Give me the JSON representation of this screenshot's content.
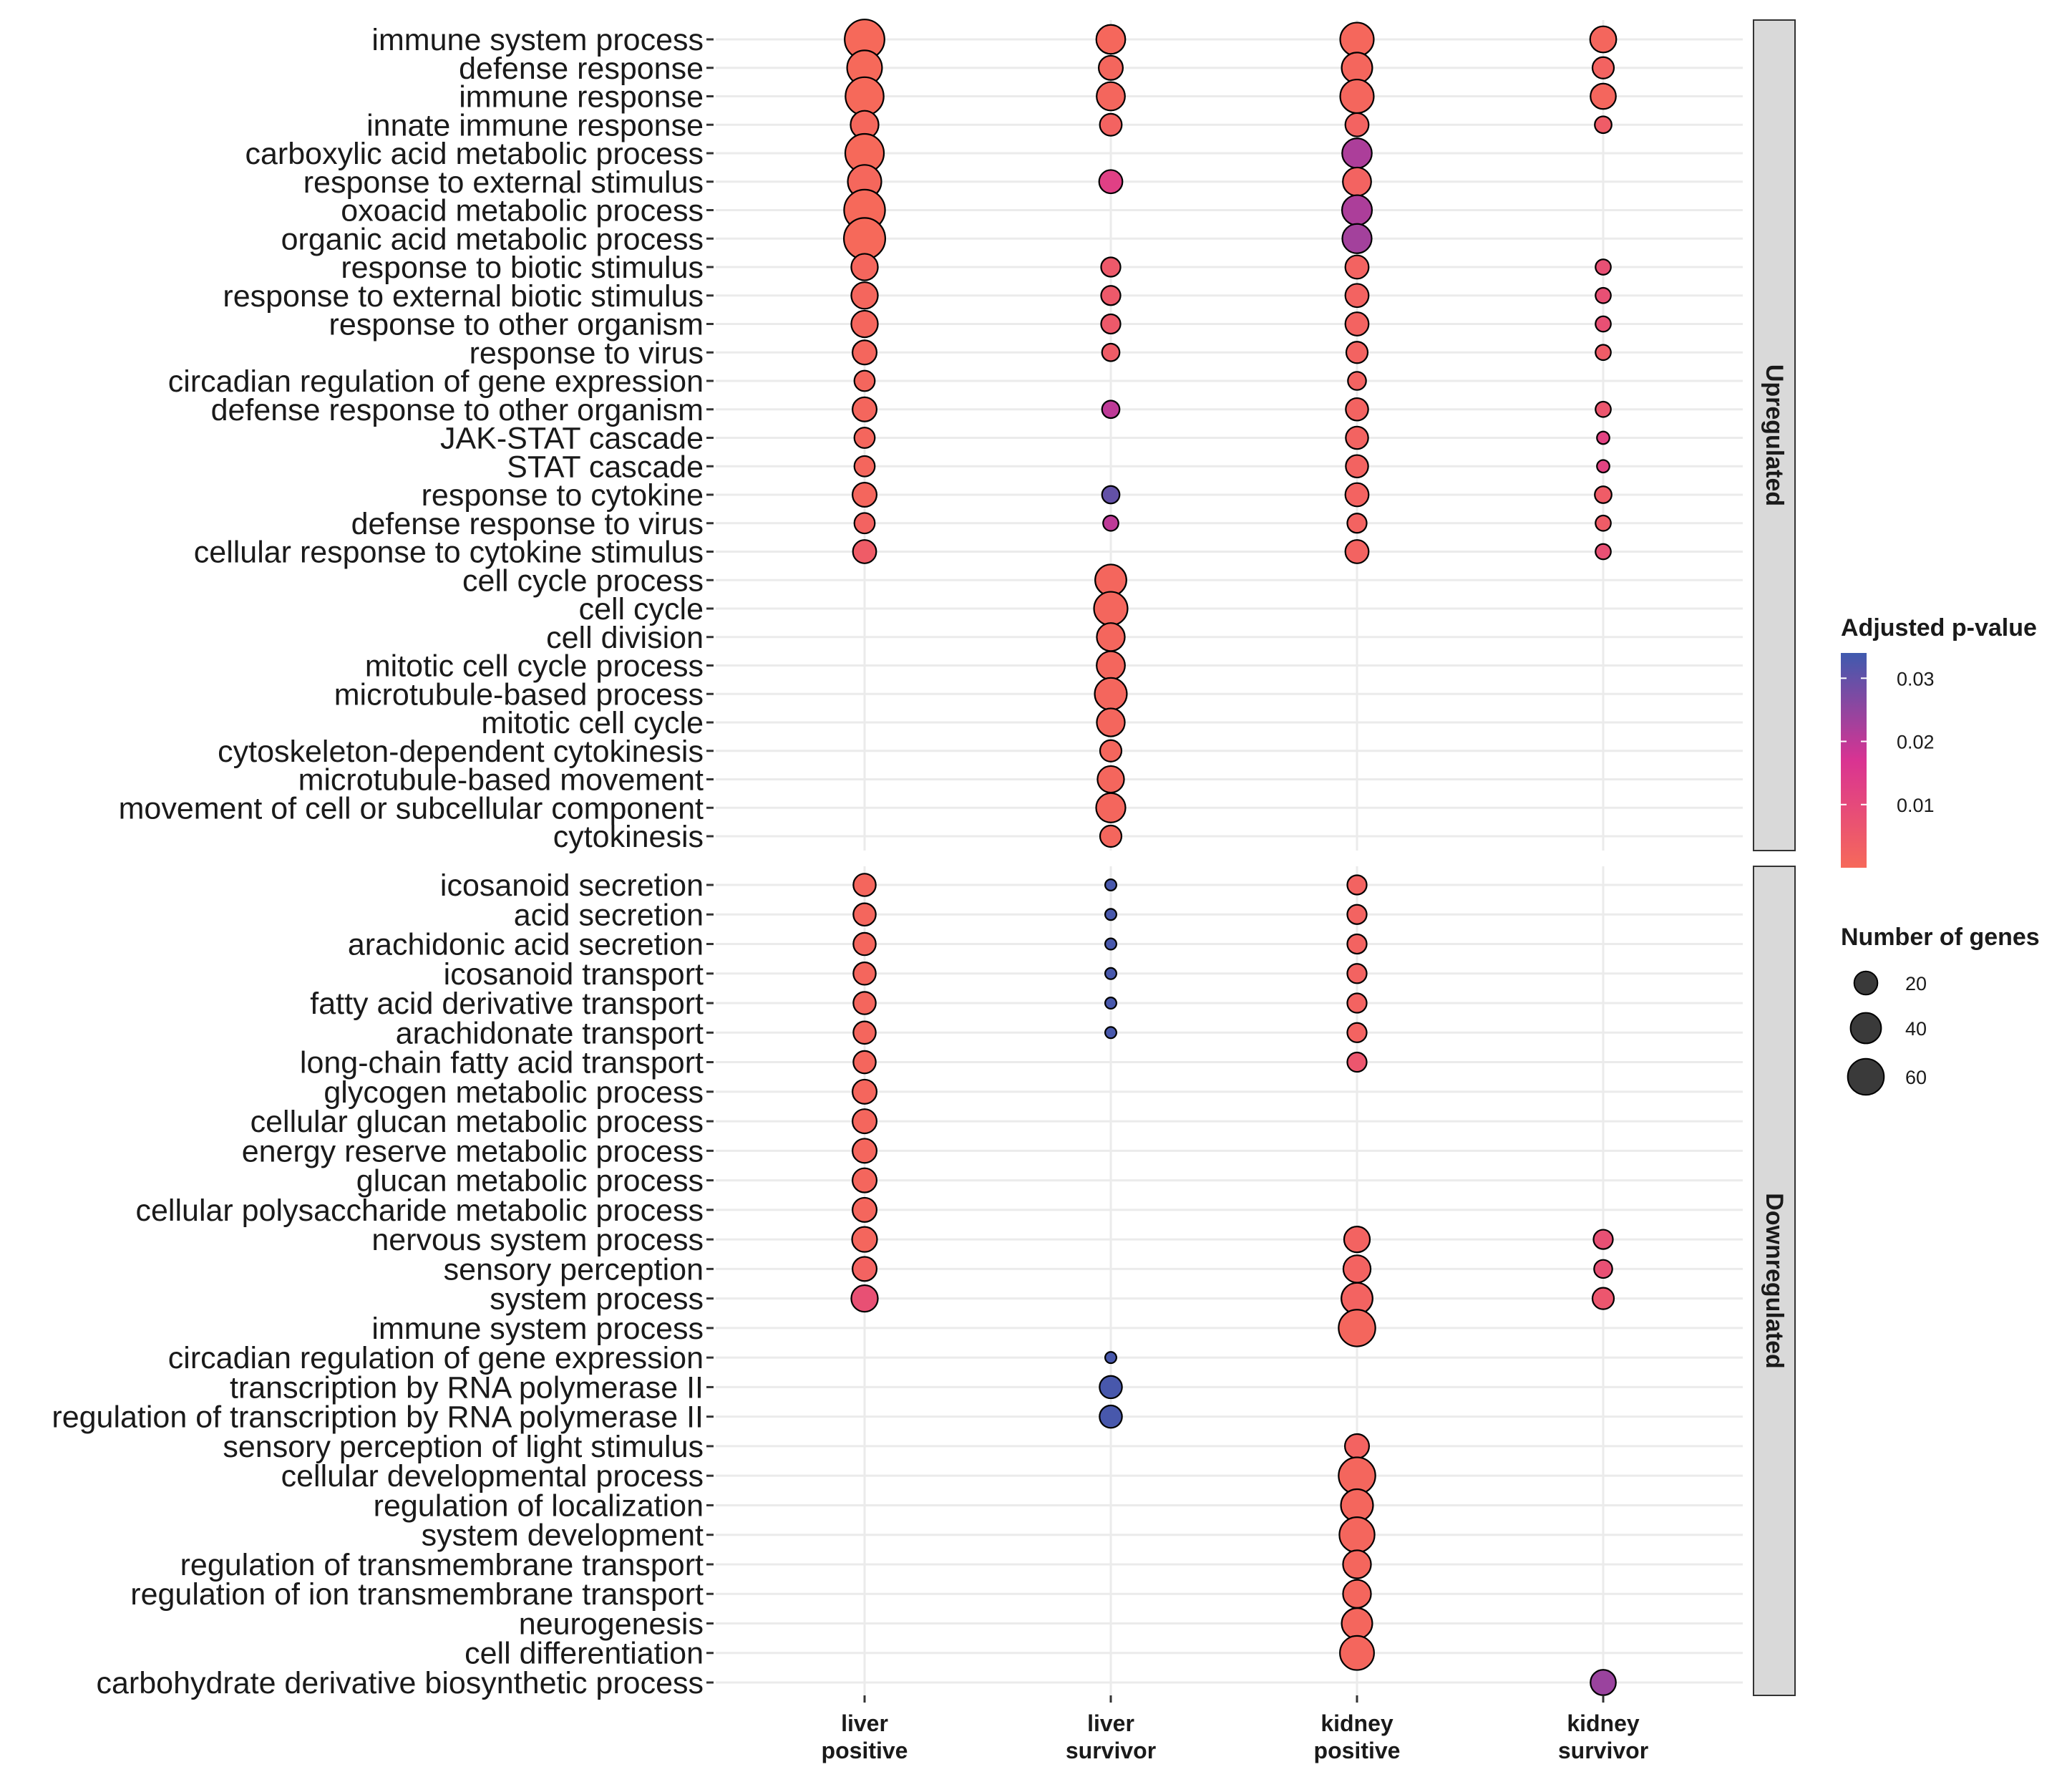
{
  "chart_data": {
    "type": "scatter",
    "subtype": "dot-plot (GO enrichment)",
    "columns": [
      {
        "id": "lp",
        "line1": "liver",
        "line2": "positive"
      },
      {
        "id": "ls",
        "line1": "liver",
        "line2": "survivor"
      },
      {
        "id": "kp",
        "line1": "kidney",
        "line2": "positive"
      },
      {
        "id": "ks",
        "line1": "kidney",
        "line2": "survivor"
      }
    ],
    "panels": [
      {
        "name": "Upregulated",
        "terms": [
          "immune system process",
          "defense response",
          "immune response",
          "innate immune response",
          "carboxylic acid metabolic process",
          "response to external stimulus",
          "oxoacid metabolic process",
          "organic acid metabolic process",
          "response to biotic stimulus",
          "response to external biotic stimulus",
          "response to other organism",
          "response to virus",
          "circadian regulation of gene expression",
          "defense response to other organism",
          "JAK-STAT cascade",
          "STAT cascade",
          "response to cytokine",
          "defense response to virus",
          "cellular response to cytokine stimulus",
          "cell cycle process",
          "cell cycle",
          "cell division",
          "mitotic cell cycle process",
          "microtubule-based process",
          "mitotic cell cycle",
          "cytoskeleton-dependent cytokinesis",
          "microtubule-based movement",
          "movement of cell or subcellular component",
          "cytokinesis"
        ],
        "points": [
          {
            "term": 0,
            "col": "lp",
            "genes": 75,
            "padj": 0.0001
          },
          {
            "term": 0,
            "col": "ls",
            "genes": 35,
            "padj": 0.0005
          },
          {
            "term": 0,
            "col": "kp",
            "genes": 50,
            "padj": 0.0005
          },
          {
            "term": 0,
            "col": "ks",
            "genes": 27,
            "padj": 0.001
          },
          {
            "term": 1,
            "col": "lp",
            "genes": 55,
            "padj": 0.0001
          },
          {
            "term": 1,
            "col": "ls",
            "genes": 22,
            "padj": 0.001
          },
          {
            "term": 1,
            "col": "kp",
            "genes": 40,
            "padj": 0.001
          },
          {
            "term": 1,
            "col": "ks",
            "genes": 16,
            "padj": 0.002
          },
          {
            "term": 2,
            "col": "lp",
            "genes": 68,
            "padj": 0.0001
          },
          {
            "term": 2,
            "col": "ls",
            "genes": 33,
            "padj": 0.001
          },
          {
            "term": 2,
            "col": "kp",
            "genes": 50,
            "padj": 0.001
          },
          {
            "term": 2,
            "col": "ks",
            "genes": 25,
            "padj": 0.001
          },
          {
            "term": 3,
            "col": "lp",
            "genes": 32,
            "padj": 0.0005
          },
          {
            "term": 3,
            "col": "ls",
            "genes": 17,
            "padj": 0.002
          },
          {
            "term": 3,
            "col": "kp",
            "genes": 20,
            "padj": 0.002
          },
          {
            "term": 3,
            "col": "ks",
            "genes": 8,
            "padj": 0.004
          },
          {
            "term": 4,
            "col": "lp",
            "genes": 70,
            "padj": 0.0001
          },
          {
            "term": 4,
            "col": "kp",
            "genes": 37,
            "padj": 0.022
          },
          {
            "term": 5,
            "col": "lp",
            "genes": 50,
            "padj": 0.0005
          },
          {
            "term": 5,
            "col": "ls",
            "genes": 20,
            "padj": 0.013
          },
          {
            "term": 5,
            "col": "kp",
            "genes": 33,
            "padj": 0.002
          },
          {
            "term": 6,
            "col": "lp",
            "genes": 80,
            "padj": 0.0001
          },
          {
            "term": 6,
            "col": "kp",
            "genes": 38,
            "padj": 0.022
          },
          {
            "term": 7,
            "col": "lp",
            "genes": 82,
            "padj": 0.0001
          },
          {
            "term": 7,
            "col": "kp",
            "genes": 36,
            "padj": 0.023
          },
          {
            "term": 8,
            "col": "lp",
            "genes": 28,
            "padj": 0.001
          },
          {
            "term": 8,
            "col": "ls",
            "genes": 12,
            "padj": 0.005
          },
          {
            "term": 8,
            "col": "kp",
            "genes": 20,
            "padj": 0.002
          },
          {
            "term": 8,
            "col": "ks",
            "genes": 6,
            "padj": 0.008
          },
          {
            "term": 9,
            "col": "lp",
            "genes": 28,
            "padj": 0.001
          },
          {
            "term": 9,
            "col": "ls",
            "genes": 12,
            "padj": 0.005
          },
          {
            "term": 9,
            "col": "kp",
            "genes": 20,
            "padj": 0.002
          },
          {
            "term": 9,
            "col": "ks",
            "genes": 6,
            "padj": 0.008
          },
          {
            "term": 10,
            "col": "lp",
            "genes": 28,
            "padj": 0.001
          },
          {
            "term": 10,
            "col": "ls",
            "genes": 12,
            "padj": 0.005
          },
          {
            "term": 10,
            "col": "kp",
            "genes": 20,
            "padj": 0.002
          },
          {
            "term": 10,
            "col": "ks",
            "genes": 6,
            "padj": 0.008
          },
          {
            "term": 11,
            "col": "lp",
            "genes": 22,
            "padj": 0.001
          },
          {
            "term": 11,
            "col": "ls",
            "genes": 9,
            "padj": 0.004
          },
          {
            "term": 11,
            "col": "kp",
            "genes": 16,
            "padj": 0.002
          },
          {
            "term": 11,
            "col": "ks",
            "genes": 6,
            "padj": 0.004
          },
          {
            "term": 12,
            "col": "lp",
            "genes": 14,
            "padj": 0.001
          },
          {
            "term": 12,
            "col": "kp",
            "genes": 10,
            "padj": 0.002
          },
          {
            "term": 13,
            "col": "lp",
            "genes": 22,
            "padj": 0.001
          },
          {
            "term": 13,
            "col": "ls",
            "genes": 9,
            "padj": 0.02
          },
          {
            "term": 13,
            "col": "kp",
            "genes": 18,
            "padj": 0.002
          },
          {
            "term": 13,
            "col": "ks",
            "genes": 6,
            "padj": 0.006
          },
          {
            "term": 14,
            "col": "lp",
            "genes": 14,
            "padj": 0.001
          },
          {
            "term": 14,
            "col": "kp",
            "genes": 18,
            "padj": 0.002
          },
          {
            "term": 14,
            "col": "ks",
            "genes": 3,
            "padj": 0.012
          },
          {
            "term": 15,
            "col": "lp",
            "genes": 14,
            "padj": 0.001
          },
          {
            "term": 15,
            "col": "kp",
            "genes": 18,
            "padj": 0.002
          },
          {
            "term": 15,
            "col": "ks",
            "genes": 3,
            "padj": 0.012
          },
          {
            "term": 16,
            "col": "lp",
            "genes": 22,
            "padj": 0.001
          },
          {
            "term": 16,
            "col": "ls",
            "genes": 9,
            "padj": 0.03
          },
          {
            "term": 16,
            "col": "kp",
            "genes": 20,
            "padj": 0.002
          },
          {
            "term": 16,
            "col": "ks",
            "genes": 8,
            "padj": 0.004
          },
          {
            "term": 17,
            "col": "lp",
            "genes": 14,
            "padj": 0.002
          },
          {
            "term": 17,
            "col": "ls",
            "genes": 6,
            "padj": 0.02
          },
          {
            "term": 17,
            "col": "kp",
            "genes": 12,
            "padj": 0.002
          },
          {
            "term": 17,
            "col": "ks",
            "genes": 6,
            "padj": 0.004
          },
          {
            "term": 18,
            "col": "lp",
            "genes": 20,
            "padj": 0.004
          },
          {
            "term": 18,
            "col": "kp",
            "genes": 20,
            "padj": 0.002
          },
          {
            "term": 18,
            "col": "ks",
            "genes": 6,
            "padj": 0.008
          },
          {
            "term": 19,
            "col": "ls",
            "genes": 42,
            "padj": 0.001
          },
          {
            "term": 20,
            "col": "ls",
            "genes": 50,
            "padj": 0.001
          },
          {
            "term": 21,
            "col": "ls",
            "genes": 32,
            "padj": 0.001
          },
          {
            "term": 22,
            "col": "ls",
            "genes": 33,
            "padj": 0.001
          },
          {
            "term": 23,
            "col": "ls",
            "genes": 45,
            "padj": 0.001
          },
          {
            "term": 24,
            "col": "ls",
            "genes": 32,
            "padj": 0.001
          },
          {
            "term": 25,
            "col": "ls",
            "genes": 16,
            "padj": 0.001
          },
          {
            "term": 26,
            "col": "ls",
            "genes": 28,
            "padj": 0.001
          },
          {
            "term": 27,
            "col": "ls",
            "genes": 36,
            "padj": 0.001
          },
          {
            "term": 28,
            "col": "ls",
            "genes": 16,
            "padj": 0.001
          }
        ]
      },
      {
        "name": "Downregulated",
        "terms": [
          "icosanoid secretion",
          "acid secretion",
          "arachidonic acid secretion",
          "icosanoid transport",
          "fatty acid derivative transport",
          "arachidonate transport",
          "long-chain fatty acid transport",
          "glycogen metabolic process",
          "cellular glucan metabolic process",
          "energy reserve metabolic process",
          "glucan metabolic process",
          "cellular polysaccharide metabolic process",
          "nervous system process",
          "sensory perception",
          "system process",
          "immune system process",
          "circadian regulation of gene expression",
          "transcription by RNA polymerase II",
          "regulation of transcription by RNA polymerase II",
          "sensory perception of light stimulus",
          "cellular developmental process",
          "regulation of localization",
          "system development",
          "regulation of transmembrane transport",
          "regulation of ion transmembrane transport",
          "neurogenesis",
          "cell differentiation",
          "carbohydrate derivative biosynthetic process"
        ],
        "points": [
          {
            "term": 0,
            "col": "lp",
            "genes": 18,
            "padj": 0.001
          },
          {
            "term": 0,
            "col": "ls",
            "genes": 2,
            "padj": 0.033
          },
          {
            "term": 0,
            "col": "kp",
            "genes": 12,
            "padj": 0.002
          },
          {
            "term": 1,
            "col": "lp",
            "genes": 18,
            "padj": 0.001
          },
          {
            "term": 1,
            "col": "ls",
            "genes": 2,
            "padj": 0.033
          },
          {
            "term": 1,
            "col": "kp",
            "genes": 12,
            "padj": 0.002
          },
          {
            "term": 2,
            "col": "lp",
            "genes": 18,
            "padj": 0.001
          },
          {
            "term": 2,
            "col": "ls",
            "genes": 2,
            "padj": 0.033
          },
          {
            "term": 2,
            "col": "kp",
            "genes": 12,
            "padj": 0.002
          },
          {
            "term": 3,
            "col": "lp",
            "genes": 18,
            "padj": 0.001
          },
          {
            "term": 3,
            "col": "ls",
            "genes": 2,
            "padj": 0.033
          },
          {
            "term": 3,
            "col": "kp",
            "genes": 12,
            "padj": 0.002
          },
          {
            "term": 4,
            "col": "lp",
            "genes": 18,
            "padj": 0.001
          },
          {
            "term": 4,
            "col": "ls",
            "genes": 2,
            "padj": 0.033
          },
          {
            "term": 4,
            "col": "kp",
            "genes": 12,
            "padj": 0.002
          },
          {
            "term": 5,
            "col": "lp",
            "genes": 18,
            "padj": 0.001
          },
          {
            "term": 5,
            "col": "ls",
            "genes": 2,
            "padj": 0.033
          },
          {
            "term": 5,
            "col": "kp",
            "genes": 12,
            "padj": 0.002
          },
          {
            "term": 6,
            "col": "lp",
            "genes": 18,
            "padj": 0.001
          },
          {
            "term": 6,
            "col": "kp",
            "genes": 12,
            "padj": 0.006
          },
          {
            "term": 7,
            "col": "lp",
            "genes": 22,
            "padj": 0.001
          },
          {
            "term": 8,
            "col": "lp",
            "genes": 22,
            "padj": 0.001
          },
          {
            "term": 9,
            "col": "lp",
            "genes": 22,
            "padj": 0.001
          },
          {
            "term": 10,
            "col": "lp",
            "genes": 22,
            "padj": 0.001
          },
          {
            "term": 11,
            "col": "lp",
            "genes": 22,
            "padj": 0.001
          },
          {
            "term": 12,
            "col": "lp",
            "genes": 24,
            "padj": 0.001
          },
          {
            "term": 12,
            "col": "kp",
            "genes": 26,
            "padj": 0.002
          },
          {
            "term": 12,
            "col": "ks",
            "genes": 12,
            "padj": 0.008
          },
          {
            "term": 13,
            "col": "lp",
            "genes": 22,
            "padj": 0.002
          },
          {
            "term": 13,
            "col": "kp",
            "genes": 30,
            "padj": 0.002
          },
          {
            "term": 13,
            "col": "ks",
            "genes": 10,
            "padj": 0.008
          },
          {
            "term": 14,
            "col": "lp",
            "genes": 28,
            "padj": 0.008
          },
          {
            "term": 14,
            "col": "kp",
            "genes": 42,
            "padj": 0.002
          },
          {
            "term": 14,
            "col": "ks",
            "genes": 16,
            "padj": 0.006
          },
          {
            "term": 15,
            "col": "kp",
            "genes": 62,
            "padj": 0.001
          },
          {
            "term": 16,
            "col": "ls",
            "genes": 2,
            "padj": 0.033
          },
          {
            "term": 17,
            "col": "ls",
            "genes": 18,
            "padj": 0.033
          },
          {
            "term": 18,
            "col": "ls",
            "genes": 18,
            "padj": 0.033
          },
          {
            "term": 19,
            "col": "kp",
            "genes": 22,
            "padj": 0.002
          },
          {
            "term": 20,
            "col": "kp",
            "genes": 62,
            "padj": 0.001
          },
          {
            "term": 21,
            "col": "kp",
            "genes": 45,
            "padj": 0.001
          },
          {
            "term": 22,
            "col": "kp",
            "genes": 56,
            "padj": 0.001
          },
          {
            "term": 23,
            "col": "kp",
            "genes": 32,
            "padj": 0.001
          },
          {
            "term": 24,
            "col": "kp",
            "genes": 32,
            "padj": 0.001
          },
          {
            "term": 25,
            "col": "kp",
            "genes": 40,
            "padj": 0.001
          },
          {
            "term": 26,
            "col": "kp",
            "genes": 52,
            "padj": 0.001
          },
          {
            "term": 27,
            "col": "ks",
            "genes": 25,
            "padj": 0.024
          }
        ]
      }
    ],
    "legend": {
      "color_title": "Adjusted p-value",
      "color_ticks": [
        {
          "value": 0.03,
          "label": "0.03"
        },
        {
          "value": 0.02,
          "label": "0.02"
        },
        {
          "value": 0.01,
          "label": "0.01"
        }
      ],
      "color_range": [
        0.0,
        0.034
      ],
      "color_low": "#F6695A",
      "color_mid": "#D93392",
      "color_high": "#3F5AAE",
      "size_title": "Number of genes",
      "size_ticks": [
        {
          "value": 20,
          "label": "20"
        },
        {
          "value": 40,
          "label": "40"
        },
        {
          "value": 60,
          "label": "60"
        }
      ]
    }
  }
}
